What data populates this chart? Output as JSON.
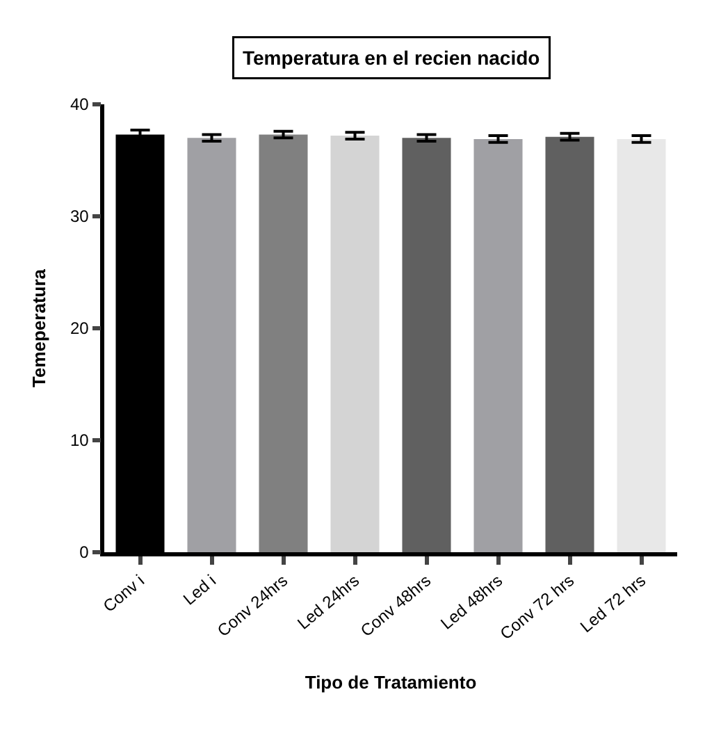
{
  "chart_data": {
    "type": "bar",
    "title": "Temperatura en el recien nacido",
    "xlabel": "Tipo de Tratamiento",
    "ylabel": "Temeperatura",
    "categories": [
      "Conv i",
      "Led i",
      "Conv 24hrs",
      "Led 24hrs",
      "Conv 48hrs",
      "Led 48hrs",
      "Conv 72 hrs",
      "Led 72 hrs"
    ],
    "values": [
      37.3,
      37.0,
      37.3,
      37.2,
      37.0,
      36.9,
      37.1,
      36.9
    ],
    "errors": [
      0.4,
      0.3,
      0.3,
      0.3,
      0.3,
      0.3,
      0.3,
      0.3
    ],
    "colors": [
      "#000000",
      "#a0a0a4",
      "#808080",
      "#d4d4d4",
      "#606060",
      "#a0a0a4",
      "#606060",
      "#e8e8e8"
    ],
    "ylim": [
      0,
      40
    ],
    "yticks": [
      0,
      10,
      20,
      30,
      40
    ]
  }
}
